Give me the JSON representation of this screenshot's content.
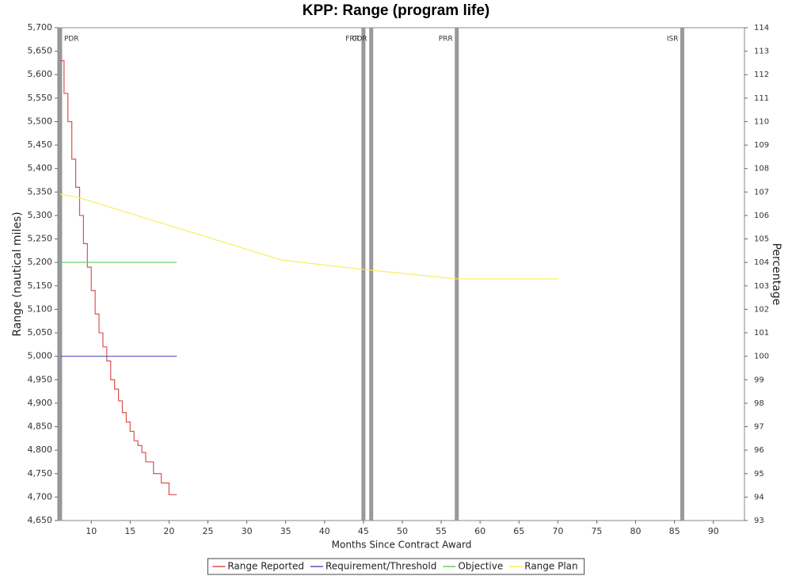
{
  "chart_data": {
    "type": "line",
    "title": "KPP: Range (program life)",
    "x_label": "Months Since Contract Award",
    "y_label": "Range (nautical miles)",
    "y2_label": "Percentage",
    "xlim": [
      5.7,
      94
    ],
    "xticks": [
      10,
      15,
      20,
      25,
      30,
      35,
      40,
      45,
      50,
      55,
      60,
      65,
      70,
      75,
      80,
      85,
      90
    ],
    "ylim": [
      4650,
      5700
    ],
    "yticks": [
      {
        "value": 4650,
        "label": "4,650"
      },
      {
        "value": 4700,
        "label": "4,700"
      },
      {
        "value": 4750,
        "label": "4,750"
      },
      {
        "value": 4800,
        "label": "4,800"
      },
      {
        "value": 4850,
        "label": "4,850"
      },
      {
        "value": 4900,
        "label": "4,900"
      },
      {
        "value": 4950,
        "label": "4,950"
      },
      {
        "value": 5000,
        "label": "5,000"
      },
      {
        "value": 5050,
        "label": "5,050"
      },
      {
        "value": 5100,
        "label": "5,100"
      },
      {
        "value": 5150,
        "label": "5,150"
      },
      {
        "value": 5200,
        "label": "5,200"
      },
      {
        "value": 5250,
        "label": "5,250"
      },
      {
        "value": 5300,
        "label": "5,300"
      },
      {
        "value": 5350,
        "label": "5,350"
      },
      {
        "value": 5400,
        "label": "5,400"
      },
      {
        "value": 5450,
        "label": "5,450"
      },
      {
        "value": 5500,
        "label": "5,500"
      },
      {
        "value": 5550,
        "label": "5,550"
      },
      {
        "value": 5600,
        "label": "5,600"
      },
      {
        "value": 5650,
        "label": "5,650"
      },
      {
        "value": 5700,
        "label": "5,700"
      }
    ],
    "y2lim": [
      93,
      114
    ],
    "y2ticks": [
      93,
      94,
      95,
      96,
      97,
      98,
      99,
      100,
      101,
      102,
      103,
      104,
      105,
      106,
      107,
      108,
      109,
      110,
      111,
      112,
      113,
      114
    ],
    "milestone_color": "#999999",
    "milestones": [
      {
        "label": "PDR",
        "x": 6
      },
      {
        "label": "FRR",
        "x": 45
      },
      {
        "label": "CDR",
        "x": 46
      },
      {
        "label": "PRR",
        "x": 57
      },
      {
        "label": "ISR",
        "x": 86
      }
    ],
    "series": [
      {
        "name": "Range Reported",
        "color": "#d9534f",
        "step": true,
        "x": [
          6,
          6.5,
          7,
          7.5,
          8,
          8.5,
          9,
          9.5,
          10,
          10.5,
          11,
          11.5,
          12,
          12.5,
          13,
          13.5,
          14,
          14.5,
          15,
          15.5,
          16,
          16.5,
          17,
          18,
          19,
          20,
          21
        ],
        "values": [
          5630,
          5560,
          5500,
          5420,
          5360,
          5300,
          5240,
          5190,
          5140,
          5090,
          5050,
          5020,
          4990,
          4950,
          4930,
          4905,
          4880,
          4860,
          4840,
          4820,
          4810,
          4795,
          4775,
          4750,
          4730,
          4705,
          4705
        ]
      },
      {
        "name": "Requirement/Threshold",
        "color": "#5555bb",
        "x": [
          6,
          21
        ],
        "values": [
          5000,
          5000
        ]
      },
      {
        "name": "Objective",
        "color": "#66cc66",
        "x": [
          6,
          21
        ],
        "values": [
          5200,
          5200
        ]
      },
      {
        "name": "Range Plan",
        "color": "#f5f060",
        "x": [
          6,
          8,
          34.5,
          45,
          57,
          70
        ],
        "values": [
          5345,
          5340,
          5205,
          5185,
          5165,
          5165
        ]
      }
    ]
  }
}
